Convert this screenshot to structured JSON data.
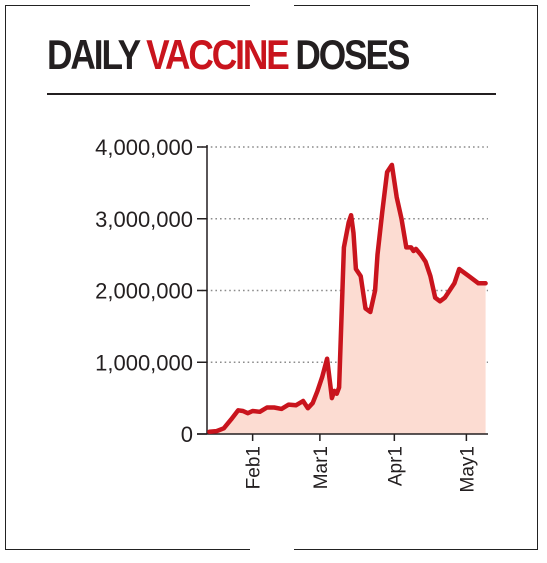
{
  "title": {
    "word1": "DAILY",
    "word2": "VACCINE",
    "word3": "DOSES"
  },
  "colors": {
    "accent_red": "#c9141d",
    "area_fill": "#fcdcd2",
    "text": "#231f20",
    "grid": "#8c8c8c"
  },
  "chart_data": {
    "type": "area",
    "title": "DAILY VACCINE DOSES",
    "xlabel": "",
    "ylabel": "",
    "ylim": [
      0,
      4000000
    ],
    "y_ticks": [
      0,
      1000000,
      2000000,
      3000000,
      4000000
    ],
    "y_tick_labels": [
      "0",
      "1,000,000",
      "2,000,000",
      "3,000,000",
      "4,000,000"
    ],
    "x_range": [
      "2021-01-13",
      "2021-05-10"
    ],
    "x_ticks": [
      "2021-02-01",
      "2021-03-01",
      "2021-04-01",
      "2021-05-01"
    ],
    "x_tick_labels": [
      "Feb1",
      "Mar1",
      "Apr1",
      "May1"
    ],
    "grid": "horizontal dotted",
    "series": [
      {
        "x": [
          "2021-01-14",
          "2021-01-17",
          "2021-01-20",
          "2021-01-23",
          "2021-01-26",
          "2021-01-28",
          "2021-01-30",
          "2021-02-01",
          "2021-02-04",
          "2021-02-07",
          "2021-02-10",
          "2021-02-13",
          "2021-02-16",
          "2021-02-19",
          "2021-02-22",
          "2021-02-24",
          "2021-02-26",
          "2021-02-28",
          "2021-03-02",
          "2021-03-04",
          "2021-03-06",
          "2021-03-07",
          "2021-03-08",
          "2021-03-09",
          "2021-03-11",
          "2021-03-13",
          "2021-03-14",
          "2021-03-15",
          "2021-03-16",
          "2021-03-18",
          "2021-03-20",
          "2021-03-22",
          "2021-03-24",
          "2021-03-25",
          "2021-03-26",
          "2021-03-27",
          "2021-03-29",
          "2021-03-30",
          "2021-03-31",
          "2021-04-02",
          "2021-04-04",
          "2021-04-06",
          "2021-04-08",
          "2021-04-09",
          "2021-04-10",
          "2021-04-12",
          "2021-04-14",
          "2021-04-16",
          "2021-04-18",
          "2021-04-20",
          "2021-04-22",
          "2021-04-24",
          "2021-04-26",
          "2021-04-28",
          "2021-04-30",
          "2021-05-02",
          "2021-05-04",
          "2021-05-06",
          "2021-05-07",
          "2021-05-08",
          "2021-05-09"
        ],
        "y": [
          30000,
          40000,
          80000,
          200000,
          330000,
          320000,
          290000,
          320000,
          310000,
          370000,
          370000,
          350000,
          410000,
          400000,
          460000,
          360000,
          430000,
          600000,
          800000,
          1050000,
          500000,
          600000,
          560000,
          650000,
          2600000,
          2950000,
          3050000,
          2800000,
          2300000,
          2200000,
          1750000,
          1700000,
          2000000,
          2500000,
          2800000,
          3100000,
          3650000,
          3700000,
          3750000,
          3300000,
          3000000,
          2600000,
          2600000,
          2550000,
          2580000,
          2500000,
          2400000,
          2200000,
          1900000,
          1850000,
          1900000,
          2000000,
          2100000,
          2300000,
          2250000,
          2200000,
          2150000,
          2100000,
          2100000,
          2100000,
          2100000
        ]
      }
    ]
  }
}
